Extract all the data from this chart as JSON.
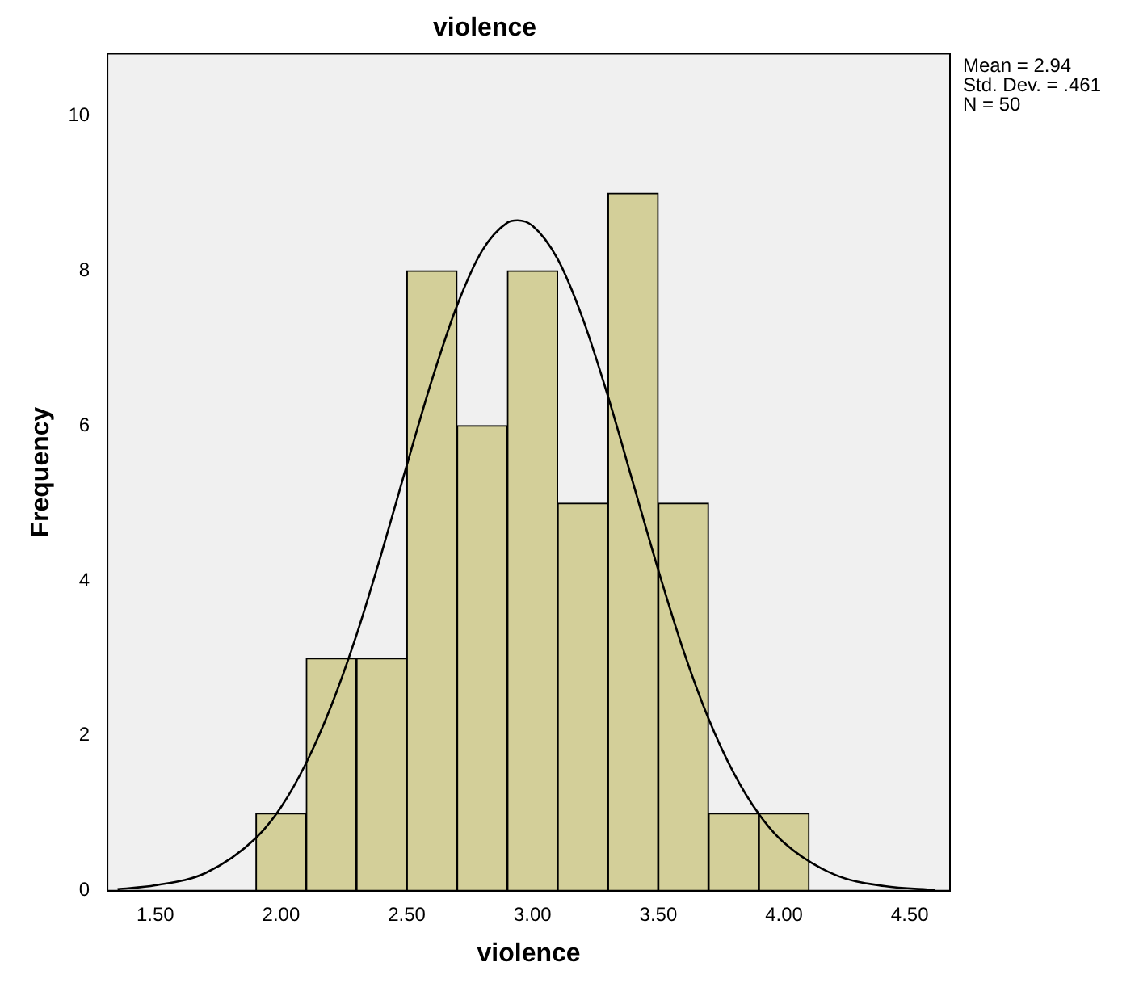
{
  "chart_data": {
    "type": "histogram",
    "title": "violence",
    "xlabel": "violence",
    "ylabel": "Frequency",
    "bins": [
      1.9,
      2.1,
      2.3,
      2.5,
      2.7,
      2.9,
      3.1,
      3.3,
      3.5,
      3.7,
      3.9,
      4.1
    ],
    "values": [
      1,
      3,
      3,
      8,
      6,
      8,
      5,
      9,
      5,
      1,
      1
    ],
    "color": "#d3cf99",
    "series": [
      {
        "type": "line",
        "color": "#000000",
        "x": [
          1.35,
          1.5,
          1.7,
          1.9,
          2.0,
          2.1,
          2.2,
          2.3,
          2.4,
          2.5,
          2.6,
          2.7,
          2.8,
          2.9,
          2.94,
          3.0,
          3.1,
          3.2,
          3.3,
          3.4,
          3.5,
          3.6,
          3.7,
          3.8,
          3.9,
          4.0,
          4.2,
          4.4,
          4.6
        ],
        "values": [
          0.02,
          0.07,
          0.23,
          0.68,
          1.08,
          1.65,
          2.39,
          3.3,
          4.36,
          5.49,
          6.59,
          7.55,
          8.26,
          8.62,
          8.65,
          8.58,
          8.15,
          7.38,
          6.38,
          5.26,
          4.14,
          3.1,
          2.22,
          1.52,
          0.99,
          0.62,
          0.21,
          0.06,
          0.01
        ]
      }
    ],
    "xlim": [
      1.31,
      4.66
    ],
    "xticks": [
      {
        "value": 1.5,
        "label": "1.50"
      },
      {
        "value": 2,
        "label": "2.00"
      },
      {
        "value": 2.5,
        "label": "2.50"
      },
      {
        "value": 3,
        "label": "3.00"
      },
      {
        "value": 3.5,
        "label": "3.50"
      },
      {
        "value": 4,
        "label": "4.00"
      },
      {
        "value": 4.5,
        "label": "4.50"
      }
    ],
    "ylim": [
      0,
      10.8
    ],
    "yticks": [
      0,
      2,
      4,
      6,
      8,
      10
    ],
    "grid": false,
    "legend": false,
    "annotations": [
      "Mean = 2.94",
      "Std. Dev. = .461",
      "N = 50"
    ]
  }
}
